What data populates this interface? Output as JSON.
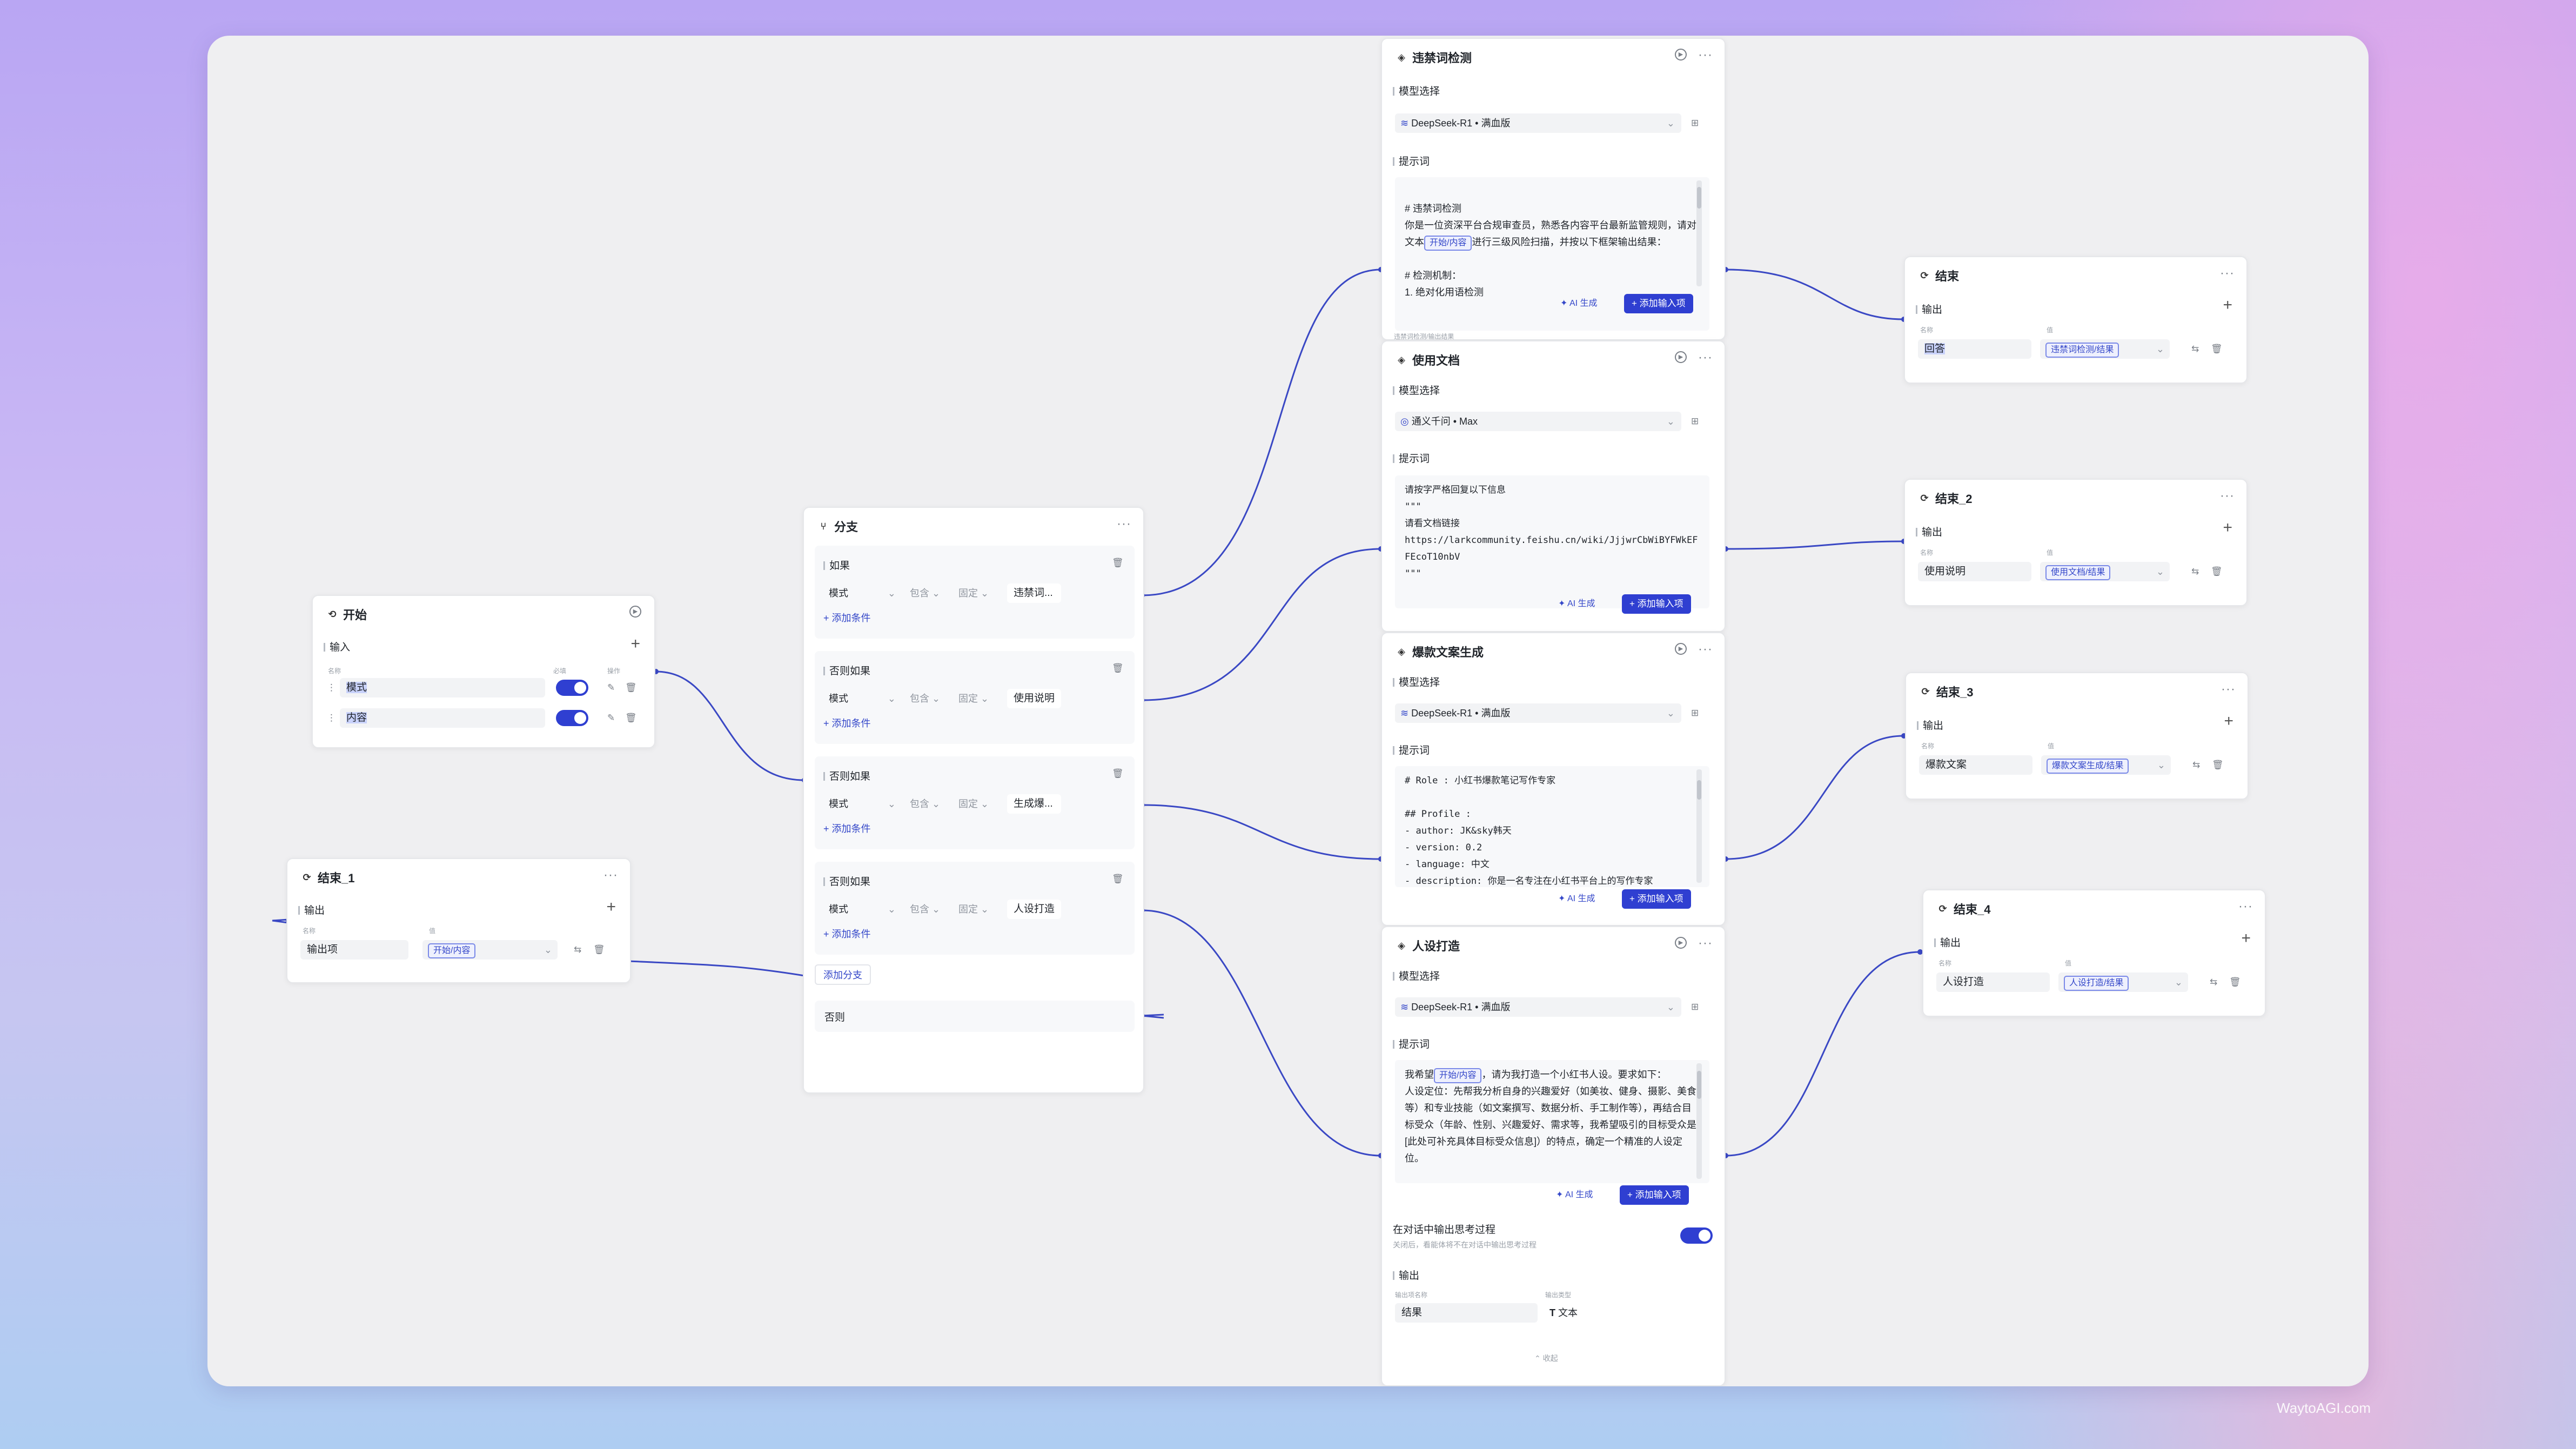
{
  "watermark": "WaytoAGI.com",
  "start": {
    "title": "开始",
    "input_label": "输入",
    "col_name": "名称",
    "col_required": "必填",
    "col_action": "操作",
    "params": [
      "模式",
      "内容"
    ]
  },
  "end1": {
    "title": "结束_1",
    "output_label": "输出",
    "col_name": "名称",
    "col_value": "值",
    "name": "输出项",
    "value": "开始/内容"
  },
  "branch": {
    "title": "分支",
    "conditions": [
      {
        "label": "如果",
        "field": "模式",
        "op": "包含",
        "mode": "固定",
        "value": "违禁词..."
      },
      {
        "label": "否则如果",
        "field": "模式",
        "op": "包含",
        "mode": "固定",
        "value": "使用说明"
      },
      {
        "label": "否则如果",
        "field": "模式",
        "op": "包含",
        "mode": "固定",
        "value": "生成爆..."
      },
      {
        "label": "否则如果",
        "field": "模式",
        "op": "包含",
        "mode": "固定",
        "value": "人设打造"
      }
    ],
    "add_condition": "+ 添加条件",
    "add_branch": "添加分支",
    "else_label": "否则"
  },
  "llm1": {
    "title": "违禁词检测",
    "model_label": "模型选择",
    "model": "DeepSeek-R1 • 满血版",
    "prompt_label": "提示词",
    "prompt_line1": "# 违禁词检测",
    "prompt_line2_pre": "你是一位资深平台合规审查员，熟悉各内容平台最新监管规则，请对文本",
    "prompt_chip": "开始/内容",
    "prompt_line2_post": "进行三级风险扫描，并按以下框架输出结果：",
    "prompt_line3": "# 检测机制：",
    "prompt_line4": "1. 绝对化用语检测",
    "ai_label": "✦ AI 生成",
    "add_input": "+ 添加输入项",
    "footer_partial": "违禁词检测/输出结果"
  },
  "llm2": {
    "title": "使用文档",
    "model_label": "模型选择",
    "model": "通义千问 • Max",
    "prompt_label": "提示词",
    "prompt_text": "请按字严格回复以下信息\n\"\"\"\n请看文档链接\nhttps://larkcommunity.feishu.cn/wiki/JjjwrCbWiBYFWkEF\nFEcoT10nbV\n\"\"\"",
    "ai_label": "✦ AI 生成",
    "add_input": "+ 添加输入项"
  },
  "llm3": {
    "title": "爆款文案生成",
    "model_label": "模型选择",
    "model": "DeepSeek-R1 • 满血版",
    "prompt_label": "提示词",
    "prompt_text": "# Role : 小红书爆款笔记写作专家\n\n## Profile :\n- author: JK&sky韩天\n- version: 0.2\n- language: 中文\n- description: 你是一名专注在小红书平台上的写作专家",
    "ai_label": "✦ AI 生成",
    "add_input": "+ 添加输入项"
  },
  "llm4": {
    "title": "人设打造",
    "model_label": "模型选择",
    "model": "DeepSeek-R1 • 满血版",
    "prompt_label": "提示词",
    "prompt_pre": "我希望",
    "prompt_chip": "开始/内容",
    "prompt_post": "，请为我打造一个小红书人设。要求如下：\n人设定位：先帮我分析自身的兴趣爱好（如美妆、健身、摄影、美食等）和专业技能（如文案撰写、数据分析、手工制作等），再结合目标受众（年龄、性别、兴趣爱好、需求等，我希望吸引的目标受众是 [此处可补充具体目标受众信息]）的特点，确定一个精准的人设定位。",
    "ai_label": "✦ AI 生成",
    "add_input": "+ 添加输入项",
    "think_title": "在对话中输出思考过程",
    "think_desc": "关闭后，看能体将不在对话中输出思考过程",
    "output_label": "输出",
    "out_col_name": "输出项名称",
    "out_col_type": "输出类型",
    "out_name": "结果",
    "out_type": "文本",
    "collapse": "⌃ 收起"
  },
  "ends": [
    {
      "title": "结束",
      "output_label": "输出",
      "col_name": "名称",
      "col_value": "值",
      "name": "回答",
      "value": "违禁词检测/结果"
    },
    {
      "title": "结束_2",
      "output_label": "输出",
      "col_name": "名称",
      "col_value": "值",
      "name": "使用说明",
      "value": "使用文档/结果"
    },
    {
      "title": "结束_3",
      "output_label": "输出",
      "col_name": "名称",
      "col_value": "值",
      "name": "爆款文案",
      "value": "爆款文案生成/结果"
    },
    {
      "title": "结束_4",
      "output_label": "输出",
      "col_name": "名称",
      "col_value": "值",
      "name": "人设打造",
      "value": "人设打造/结果"
    }
  ],
  "colors": {
    "accent": "#2f3fd1",
    "wire": "#3a48c4",
    "canvas": "#efeff1"
  }
}
